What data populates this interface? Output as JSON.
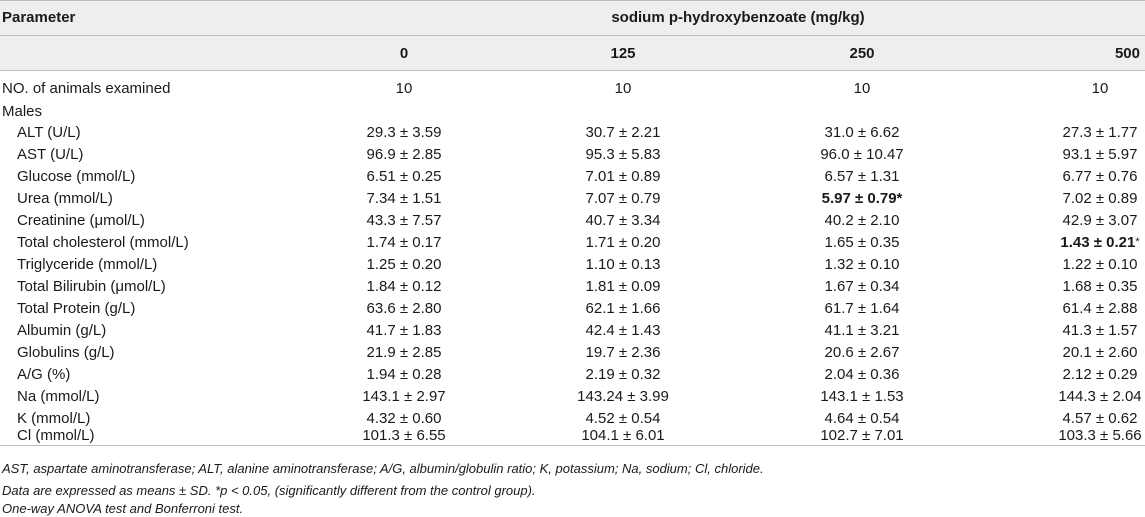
{
  "table": {
    "param_header": "Parameter",
    "group_header": "sodium p-hydroxybenzoate (mg/kg)",
    "doses": [
      "0",
      "125",
      "250",
      "500"
    ],
    "animals_label": "NO. of animals examined",
    "animals": [
      "10",
      "10",
      "10",
      "10"
    ],
    "section_label": "Males",
    "rows": [
      {
        "label": "ALT (U/L)",
        "v": [
          "29.3 ± 3.59",
          "30.7 ± 2.21",
          "31.0 ± 6.62",
          "27.3 ± 1.77"
        ]
      },
      {
        "label": "AST (U/L)",
        "v": [
          "96.9 ± 2.85",
          "95.3 ± 5.83",
          "96.0 ± 10.47",
          "93.1 ± 5.97"
        ]
      },
      {
        "label": "Glucose (mmol/L)",
        "v": [
          "6.51 ± 0.25",
          "7.01 ± 0.89",
          "6.57 ± 1.31",
          "6.77 ± 0.76"
        ]
      },
      {
        "label": "Urea (mmol/L)",
        "v": [
          "7.34 ± 1.51",
          "7.07 ± 0.79",
          "5.97 ± 0.79*",
          "7.02 ± 0.89"
        ]
      },
      {
        "label": "Creatinine (μmol/L)",
        "v": [
          "43.3 ± 7.57",
          "40.7 ± 3.34",
          "40.2 ± 2.10",
          "42.9 ± 3.07"
        ]
      },
      {
        "label": "Total cholesterol (mmol/L)",
        "v": [
          "1.74 ± 0.17",
          "1.71 ± 0.20",
          "1.65 ± 0.35",
          "1.43 ± 0.21"
        ]
      },
      {
        "label": "Triglyceride (mmol/L)",
        "v": [
          "1.25 ± 0.20",
          "1.10 ± 0.13",
          "1.32 ± 0.10",
          "1.22 ± 0.10"
        ]
      },
      {
        "label": "Total Bilirubin (μmol/L)",
        "v": [
          "1.84 ± 0.12",
          "1.81 ± 0.09",
          "1.67 ± 0.34",
          "1.68 ± 0.35"
        ]
      },
      {
        "label": "Total Protein (g/L)",
        "v": [
          "63.6 ± 2.80",
          "62.1 ± 1.66",
          "61.7 ± 1.64",
          "61.4 ± 2.88"
        ]
      },
      {
        "label": "Albumin (g/L)",
        "v": [
          "41.7 ± 1.83",
          "42.4 ± 1.43",
          "41.1 ± 3.21",
          "41.3 ± 1.57"
        ]
      },
      {
        "label": "Globulins (g/L)",
        "v": [
          "21.9 ± 2.85",
          "19.7 ± 2.36",
          "20.6 ± 2.67",
          "20.1 ± 2.60"
        ]
      },
      {
        "label": "A/G (%)",
        "v": [
          "1.94 ± 0.28",
          "2.19 ± 0.32",
          "2.04 ± 0.36",
          "2.12 ± 0.29"
        ]
      },
      {
        "label": "Na (mmol/L)",
        "v": [
          "143.1 ± 2.97",
          "143.24 ± 3.99",
          "143.1 ± 1.53",
          "144.3 ± 2.04"
        ]
      },
      {
        "label": "K (mmol/L)",
        "v": [
          "4.32 ± 0.60",
          "4.52 ± 0.54",
          "4.64 ± 0.54",
          "4.57 ± 0.62"
        ]
      },
      {
        "label": "Cl (mmol/L)",
        "v": [
          "101.3 ± 6.55",
          "104.1 ± 6.01",
          "102.7 ± 7.01",
          "103.3 ± 5.66"
        ]
      }
    ],
    "chol_500_star": "*",
    "notes": [
      "AST, aspartate aminotransferase; ALT, alanine aminotransferase; A/G, albumin/globulin ratio; K, potassium; Na, sodium; Cl, chloride.",
      "Data are expressed as means ± SD. *p < 0.05, (significantly different from the control group).",
      "One-way ANOVA test and Bonferroni test."
    ]
  }
}
